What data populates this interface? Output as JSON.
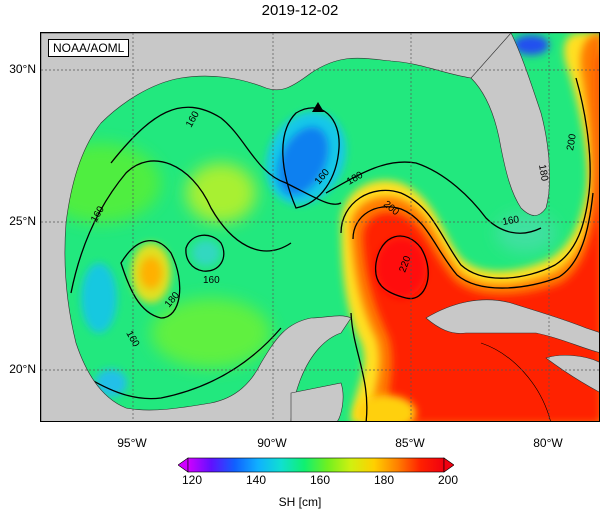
{
  "title": "2019-12-02",
  "source": "NOAA/AOML",
  "axes": {
    "lat_labels": [
      {
        "value": 30,
        "text": "30°N"
      },
      {
        "value": 25,
        "text": "25°N"
      },
      {
        "value": 20,
        "text": "20°N"
      }
    ],
    "lon_labels": [
      {
        "value": -95,
        "text": "95°W"
      },
      {
        "value": -90,
        "text": "90°W"
      },
      {
        "value": -85,
        "text": "85°W"
      },
      {
        "value": -80,
        "text": "80°W"
      }
    ]
  },
  "contour_labels": [
    "160",
    "160",
    "160",
    "160",
    "160",
    "160",
    "180",
    "180",
    "180",
    "200",
    "200",
    "220"
  ],
  "colorbar": {
    "title": "SH [cm]",
    "ticks": [
      "120",
      "140",
      "160",
      "180",
      "200"
    ],
    "colors": [
      "#d000ff",
      "#6010ff",
      "#1060ff",
      "#10b0ff",
      "#10e0d0",
      "#10f070",
      "#70f020",
      "#d0f010",
      "#ffd000",
      "#ff8000",
      "#ff2000",
      "#f00010"
    ]
  },
  "marker": {
    "type": "triangle",
    "lon": -88.3,
    "lat": 28.8
  },
  "colors": {
    "land": "#c8c8c8",
    "background": "#20e880",
    "loop_current": "#ff2a00",
    "contour": "#000000"
  }
}
